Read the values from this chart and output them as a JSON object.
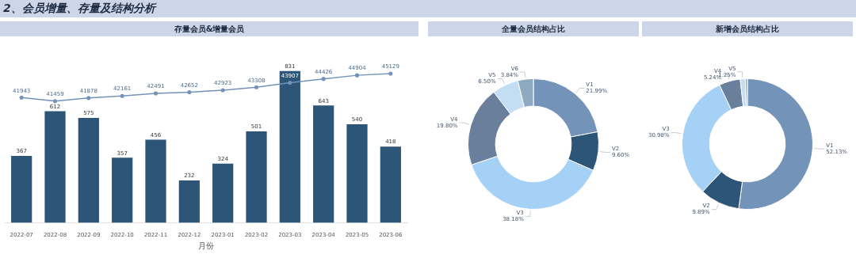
{
  "chart_data": [
    {
      "type": "bar",
      "title": "存量会员&增量会员",
      "annotations": [
        "2、会员增量、存量及结构分析"
      ],
      "xlabel": "月份",
      "categories": [
        "2022-07",
        "2022-08",
        "2022-09",
        "2022-10",
        "2022-11",
        "2022-12",
        "2023-01",
        "2023-02",
        "2023-03",
        "2023-04",
        "2023-05",
        "2023-06"
      ],
      "series": [
        {
          "type": "bar",
          "color": "#2d5577",
          "values": [
            367,
            612,
            575,
            357,
            456,
            232,
            324,
            501,
            831,
            643,
            540,
            418
          ]
        },
        {
          "type": "line",
          "axis": "y2",
          "color": "#7393b8",
          "marker": "circle",
          "values": [
            41943,
            41459,
            41878,
            42161,
            42491,
            42652,
            42923,
            43308,
            43907,
            44426,
            44904,
            45129
          ]
        }
      ],
      "data_labels": true,
      "legend": false
    },
    {
      "type": "donut",
      "title": "全量会员结构占比",
      "categories": [
        "V1",
        "V2",
        "V3",
        "V4",
        "V5",
        "V6"
      ],
      "values": [
        21.99,
        9.6,
        38.18,
        19.8,
        6.5,
        3.84
      ],
      "colors": [
        "#7393b8",
        "#2d5577",
        "#a6d1f7",
        "#6a7f9b",
        "#c3ddf3",
        "#8eaac0"
      ],
      "value_labels": [
        "21.99%",
        "9.60%",
        "38.18%",
        "19.80%",
        "6.50%",
        "3.84%"
      ],
      "legend": false
    },
    {
      "type": "donut",
      "title": "新增会员结构占比",
      "categories": [
        "V1",
        "V2",
        "V3",
        "V4",
        "V5",
        null
      ],
      "values": [
        52.13,
        9.89,
        30.98,
        5.24,
        1.25,
        0.51
      ],
      "colors": [
        "#7393b8",
        "#2d5577",
        "#a6d1f7",
        "#6a7f9b",
        "#c3ddf3",
        "#8eaac0"
      ],
      "value_labels": [
        "52.13%",
        "9.89%",
        "30.98%",
        "5.24%",
        "1.25%",
        null
      ],
      "legend": false
    }
  ]
}
